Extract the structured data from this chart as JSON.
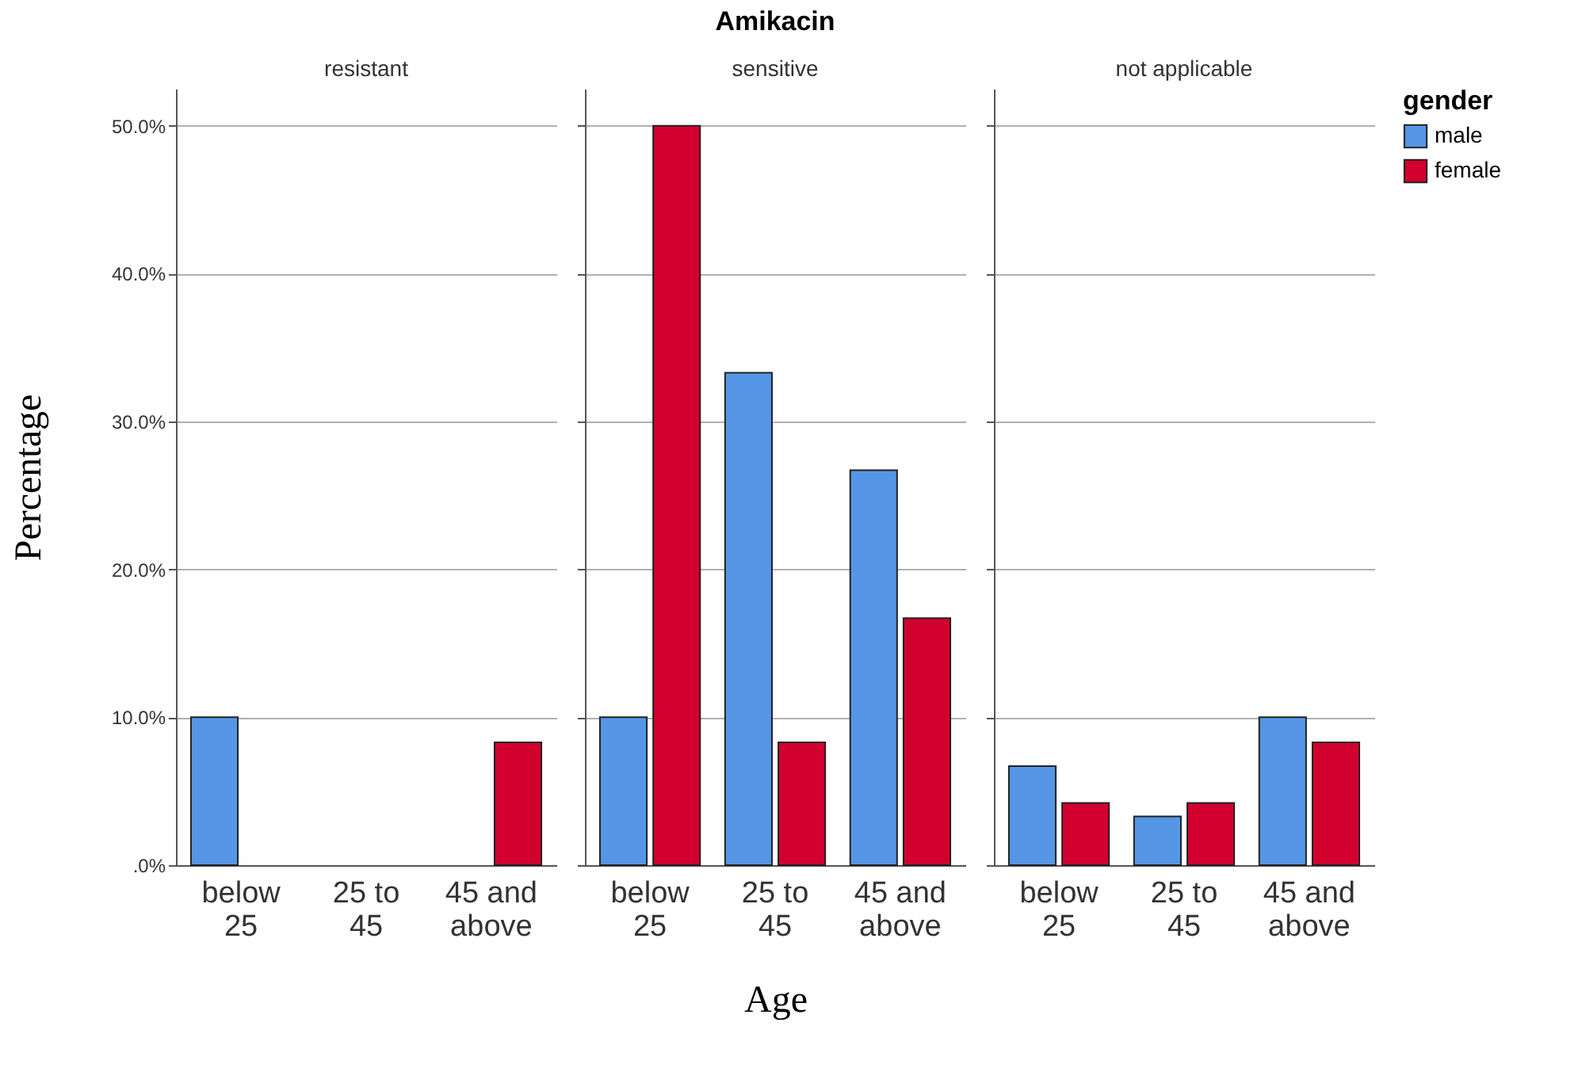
{
  "chart_data": [
    {
      "type": "bar",
      "subtitle": "resistant",
      "ylabel": "Percentage",
      "categories": [
        "below\n25",
        "25 to\n45",
        "45 and\nabove"
      ],
      "series": [
        {
          "color": "#5596e6",
          "values": [
            10,
            0,
            0
          ]
        },
        {
          "color": "#d2002e",
          "values": [
            0,
            0,
            8.3
          ]
        }
      ],
      "ylim": [
        0,
        52.5
      ],
      "yticks": [
        {
          "value": 0,
          "label": ".0%"
        },
        {
          "value": 10,
          "label": "10.0%"
        },
        {
          "value": 20,
          "label": "20.0%"
        },
        {
          "value": 30,
          "label": "30.0%"
        },
        {
          "value": 40,
          "label": "40.0%"
        },
        {
          "value": 50,
          "label": "50.0%"
        }
      ],
      "grid": "y"
    },
    {
      "type": "bar",
      "title": "Amikacin",
      "subtitle": "sensitive",
      "xlabel": "Age",
      "categories": [
        "below\n25",
        "25 to\n45",
        "45 and\nabove"
      ],
      "series": [
        {
          "color": "#5596e6",
          "values": [
            10,
            33.3,
            26.7
          ]
        },
        {
          "color": "#d2002e",
          "values": [
            50,
            8.3,
            16.7
          ]
        }
      ],
      "ylim": [
        0,
        52.5
      ],
      "yticks": [
        0,
        10,
        20,
        30,
        40,
        50
      ],
      "grid": "y",
      "tick_labels": "x"
    },
    {
      "type": "bar",
      "subtitle": "not applicable",
      "legend_title": "gender",
      "legend": "top right",
      "categories": [
        "below\n25",
        "25 to\n45",
        "45 and\nabove"
      ],
      "series": [
        {
          "name": "male",
          "color": "#5596e6",
          "values": [
            6.7,
            3.3,
            10
          ]
        },
        {
          "name": "female",
          "color": "#d2002e",
          "values": [
            4.2,
            4.2,
            8.3
          ]
        }
      ],
      "ylim": [
        0,
        52.5
      ],
      "yticks": [
        0,
        10,
        20,
        30,
        40,
        50
      ],
      "grid": "y",
      "tick_labels": "x"
    }
  ]
}
